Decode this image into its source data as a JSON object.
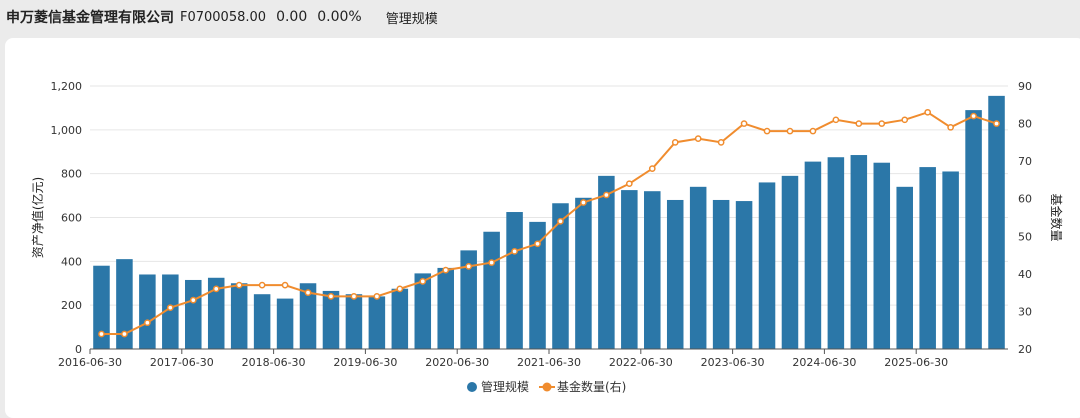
{
  "header": {
    "company": "申万菱信基金管理有限公司",
    "code": "F0700058.00",
    "change": "0.00",
    "change_pct": "0.00%",
    "metric": "管理规模"
  },
  "colors": {
    "bar": "#2b77a8",
    "line": "#f08c2e",
    "grid": "#e6e6e6",
    "axis": "#555555"
  },
  "chart_data": {
    "type": "bar",
    "title": "",
    "ylabel": "资产净值(亿元)",
    "y2label": "基金数量",
    "ylim": [
      0,
      1200
    ],
    "y2lim": [
      20,
      90
    ],
    "yticks": [
      "0",
      "200",
      "400",
      "600",
      "800",
      "1,000",
      "1,200"
    ],
    "y2ticks": [
      "20",
      "30",
      "40",
      "50",
      "60",
      "70",
      "80",
      "90"
    ],
    "xticks": [
      "2016-06-30",
      "2017-06-30",
      "2018-06-30",
      "2019-06-30",
      "2020-06-30",
      "2021-06-30",
      "2022-06-30",
      "2023-06-30",
      "2024-06-30",
      "2025-06-30"
    ],
    "xtick_index": [
      0,
      4,
      8,
      12,
      16,
      20,
      24,
      28,
      32,
      36
    ],
    "legend_position": "bottom",
    "grid": true,
    "series": [
      {
        "name": "管理规模",
        "type": "bar",
        "axis": "left",
        "values": [
          380,
          410,
          340,
          340,
          315,
          325,
          300,
          250,
          230,
          300,
          265,
          250,
          240,
          275,
          345,
          370,
          450,
          535,
          625,
          580,
          665,
          690,
          790,
          725,
          720,
          680,
          740,
          680,
          675,
          760,
          790,
          855,
          875,
          885,
          850,
          740,
          830,
          810,
          1090,
          1155
        ]
      },
      {
        "name": "基金数量(右)",
        "type": "line",
        "axis": "right",
        "values": [
          24,
          24,
          27,
          31,
          33,
          36,
          37,
          37,
          37,
          35,
          34,
          34,
          34,
          36,
          38,
          41,
          42,
          43,
          46,
          48,
          54,
          59,
          61,
          64,
          68,
          75,
          76,
          75,
          80,
          78,
          78,
          78,
          81,
          80,
          80,
          81,
          83,
          79,
          82,
          80
        ]
      }
    ]
  }
}
